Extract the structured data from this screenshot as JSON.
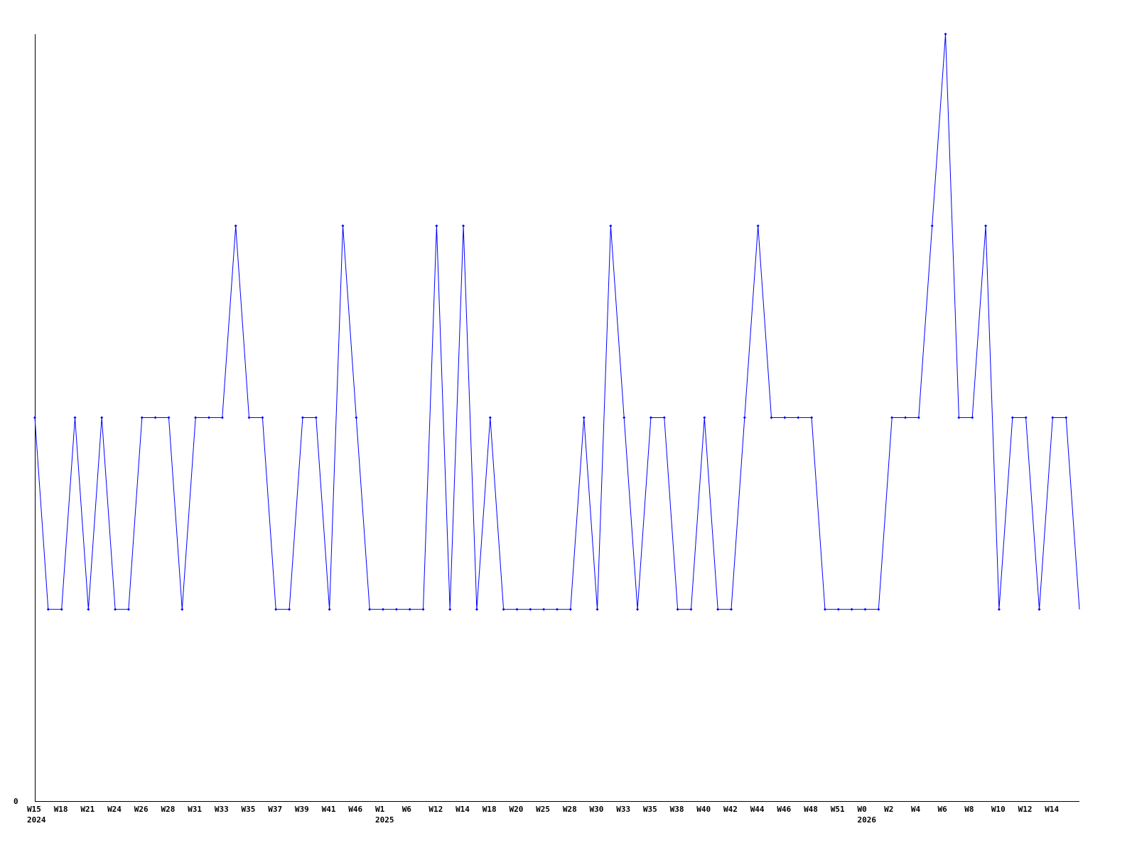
{
  "chart_data": {
    "type": "line",
    "title": "",
    "xlabel": "",
    "ylabel": "",
    "ylim": [
      0,
      4
    ],
    "y_tick_labels": [
      "0"
    ],
    "grid": false,
    "legend": "none",
    "series_color": "#0000ff",
    "x_tick_labels": [
      "W15",
      "W18",
      "W21",
      "W24",
      "W26",
      "W28",
      "W31",
      "W33",
      "W35",
      "W37",
      "W39",
      "W41",
      "W46",
      "W1",
      "W6",
      "W12",
      "W14",
      "W18",
      "W20",
      "W25",
      "W28",
      "W30",
      "W33",
      "W35",
      "W38",
      "W40",
      "W42",
      "W44",
      "W46",
      "W48",
      "W51",
      "W0",
      "W2",
      "W4",
      "W6",
      "W8",
      "W10",
      "W12",
      "W14"
    ],
    "year_labels": [
      {
        "tick_index": 0,
        "label": "2024"
      },
      {
        "tick_index": 13,
        "label": "2025"
      },
      {
        "tick_index": 31,
        "label": "2026"
      }
    ],
    "values": [
      2,
      1,
      1,
      2,
      1,
      2,
      1,
      1,
      2,
      2,
      2,
      1,
      2,
      2,
      2,
      3,
      2,
      2,
      1,
      1,
      2,
      2,
      1,
      3,
      2,
      1,
      1,
      1,
      1,
      1,
      3,
      1,
      3,
      1,
      2,
      1,
      1,
      1,
      1,
      1,
      1,
      2,
      1,
      3,
      2,
      1,
      2,
      2,
      1,
      1,
      2,
      1,
      1,
      2,
      3,
      2,
      2,
      2,
      2,
      1,
      1,
      1,
      1,
      1,
      2,
      2,
      2,
      3,
      4,
      2,
      2,
      3,
      1,
      2,
      2,
      1,
      2,
      2,
      1
    ]
  }
}
